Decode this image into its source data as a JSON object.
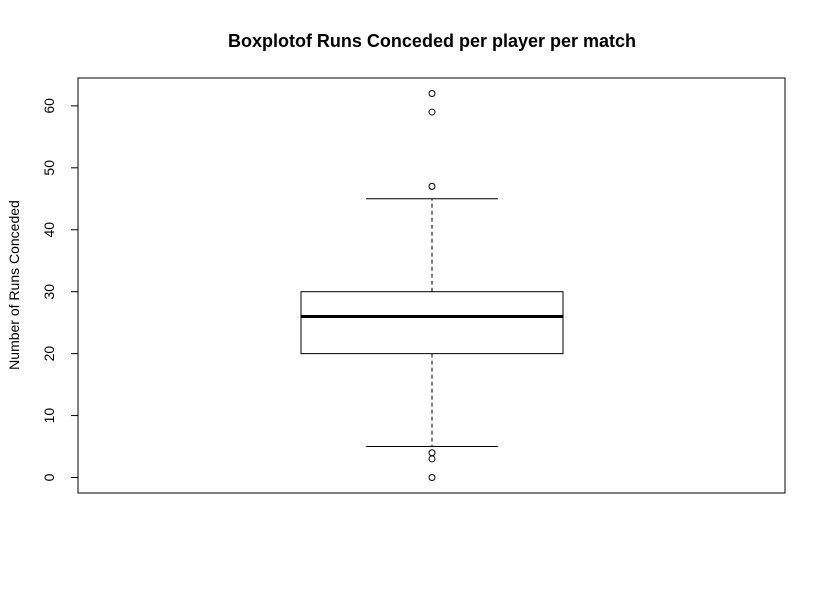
{
  "chart_data": {
    "type": "box",
    "title": "Boxplotof Runs Conceded  per player per match",
    "xlabel": "",
    "ylabel": "Number of Runs Conceded",
    "ylim": [
      -2.5,
      64.5
    ],
    "yticks": [
      0,
      10,
      20,
      30,
      40,
      50,
      60
    ],
    "grid": false,
    "legend": "none",
    "box": {
      "whisker_low": 5,
      "q1": 20,
      "median": 26,
      "q3": 30,
      "whisker_high": 45
    },
    "outliers": [
      0,
      3,
      4,
      47,
      59,
      62
    ]
  }
}
